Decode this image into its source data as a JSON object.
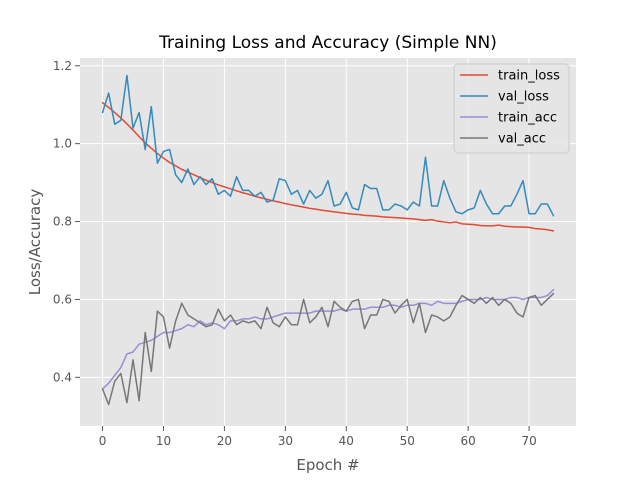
{
  "chart_data": {
    "type": "line",
    "title": "Training Loss and Accuracy (Simple NN)",
    "xlabel": "Epoch #",
    "ylabel": "Loss/Accuracy",
    "xlim": [
      -3.7,
      77.7
    ],
    "ylim": [
      0.275,
      1.22
    ],
    "xticks": [
      "0",
      "10",
      "20",
      "30",
      "40",
      "50",
      "60",
      "70"
    ],
    "yticks": [
      "0.4",
      "0.6",
      "0.8",
      "1.0",
      "1.2"
    ],
    "grid": true,
    "legend_position": "top-right",
    "x": [
      0,
      1,
      2,
      3,
      4,
      5,
      6,
      7,
      8,
      9,
      10,
      11,
      12,
      13,
      14,
      15,
      16,
      17,
      18,
      19,
      20,
      21,
      22,
      23,
      24,
      25,
      26,
      27,
      28,
      29,
      30,
      31,
      32,
      33,
      34,
      35,
      36,
      37,
      38,
      39,
      40,
      41,
      42,
      43,
      44,
      45,
      46,
      47,
      48,
      49,
      50,
      51,
      52,
      53,
      54,
      55,
      56,
      57,
      58,
      59,
      60,
      61,
      62,
      63,
      64,
      65,
      66,
      67,
      68,
      69,
      70,
      71,
      72,
      73,
      74
    ],
    "series": [
      {
        "name": "train_loss",
        "color": "#E24A33",
        "values": [
          1.105,
          1.093,
          1.08,
          1.066,
          1.051,
          1.035,
          1.018,
          1.002,
          0.988,
          0.975,
          0.963,
          0.952,
          0.943,
          0.934,
          0.927,
          0.92,
          0.913,
          0.906,
          0.9,
          0.894,
          0.889,
          0.884,
          0.879,
          0.874,
          0.87,
          0.865,
          0.861,
          0.857,
          0.853,
          0.85,
          0.846,
          0.843,
          0.84,
          0.837,
          0.834,
          0.832,
          0.829,
          0.827,
          0.825,
          0.823,
          0.821,
          0.819,
          0.818,
          0.816,
          0.815,
          0.814,
          0.812,
          0.811,
          0.81,
          0.809,
          0.808,
          0.807,
          0.805,
          0.803,
          0.805,
          0.801,
          0.799,
          0.797,
          0.799,
          0.794,
          0.793,
          0.792,
          0.79,
          0.789,
          0.789,
          0.791,
          0.788,
          0.787,
          0.786,
          0.786,
          0.785,
          0.782,
          0.781,
          0.779,
          0.776
        ]
      },
      {
        "name": "val_loss",
        "color": "#348ABD",
        "values": [
          1.08,
          1.13,
          1.05,
          1.06,
          1.175,
          1.04,
          1.08,
          0.985,
          1.095,
          0.95,
          0.98,
          0.985,
          0.92,
          0.9,
          0.935,
          0.895,
          0.915,
          0.895,
          0.91,
          0.87,
          0.88,
          0.865,
          0.915,
          0.88,
          0.88,
          0.865,
          0.875,
          0.85,
          0.855,
          0.91,
          0.905,
          0.87,
          0.88,
          0.845,
          0.88,
          0.86,
          0.87,
          0.905,
          0.84,
          0.845,
          0.875,
          0.835,
          0.83,
          0.895,
          0.885,
          0.885,
          0.83,
          0.83,
          0.845,
          0.84,
          0.83,
          0.85,
          0.84,
          0.965,
          0.84,
          0.84,
          0.905,
          0.86,
          0.825,
          0.82,
          0.83,
          0.835,
          0.88,
          0.845,
          0.82,
          0.82,
          0.84,
          0.84,
          0.87,
          0.905,
          0.82,
          0.82,
          0.845,
          0.845,
          0.815
        ]
      },
      {
        "name": "train_acc",
        "color": "#988ED5",
        "values": [
          0.37,
          0.385,
          0.405,
          0.425,
          0.46,
          0.465,
          0.485,
          0.49,
          0.495,
          0.505,
          0.515,
          0.515,
          0.52,
          0.525,
          0.535,
          0.53,
          0.545,
          0.535,
          0.54,
          0.535,
          0.525,
          0.545,
          0.545,
          0.55,
          0.55,
          0.555,
          0.55,
          0.55,
          0.555,
          0.56,
          0.565,
          0.565,
          0.565,
          0.565,
          0.565,
          0.57,
          0.57,
          0.57,
          0.57,
          0.575,
          0.57,
          0.575,
          0.575,
          0.575,
          0.58,
          0.58,
          0.58,
          0.585,
          0.585,
          0.58,
          0.585,
          0.585,
          0.59,
          0.59,
          0.585,
          0.595,
          0.59,
          0.59,
          0.59,
          0.595,
          0.6,
          0.6,
          0.6,
          0.605,
          0.6,
          0.6,
          0.6,
          0.605,
          0.605,
          0.6,
          0.605,
          0.605,
          0.605,
          0.61,
          0.625
        ]
      },
      {
        "name": "val_acc",
        "color": "#777777",
        "values": [
          0.37,
          0.33,
          0.39,
          0.41,
          0.335,
          0.445,
          0.34,
          0.515,
          0.415,
          0.57,
          0.555,
          0.475,
          0.545,
          0.59,
          0.56,
          0.55,
          0.54,
          0.53,
          0.535,
          0.575,
          0.545,
          0.56,
          0.535,
          0.545,
          0.54,
          0.545,
          0.525,
          0.58,
          0.54,
          0.53,
          0.555,
          0.535,
          0.535,
          0.6,
          0.54,
          0.555,
          0.58,
          0.53,
          0.595,
          0.58,
          0.57,
          0.595,
          0.6,
          0.525,
          0.56,
          0.56,
          0.6,
          0.595,
          0.565,
          0.585,
          0.6,
          0.54,
          0.59,
          0.515,
          0.56,
          0.555,
          0.545,
          0.555,
          0.585,
          0.61,
          0.6,
          0.59,
          0.605,
          0.59,
          0.605,
          0.585,
          0.6,
          0.59,
          0.565,
          0.555,
          0.605,
          0.61,
          0.585,
          0.6,
          0.615
        ]
      }
    ]
  }
}
